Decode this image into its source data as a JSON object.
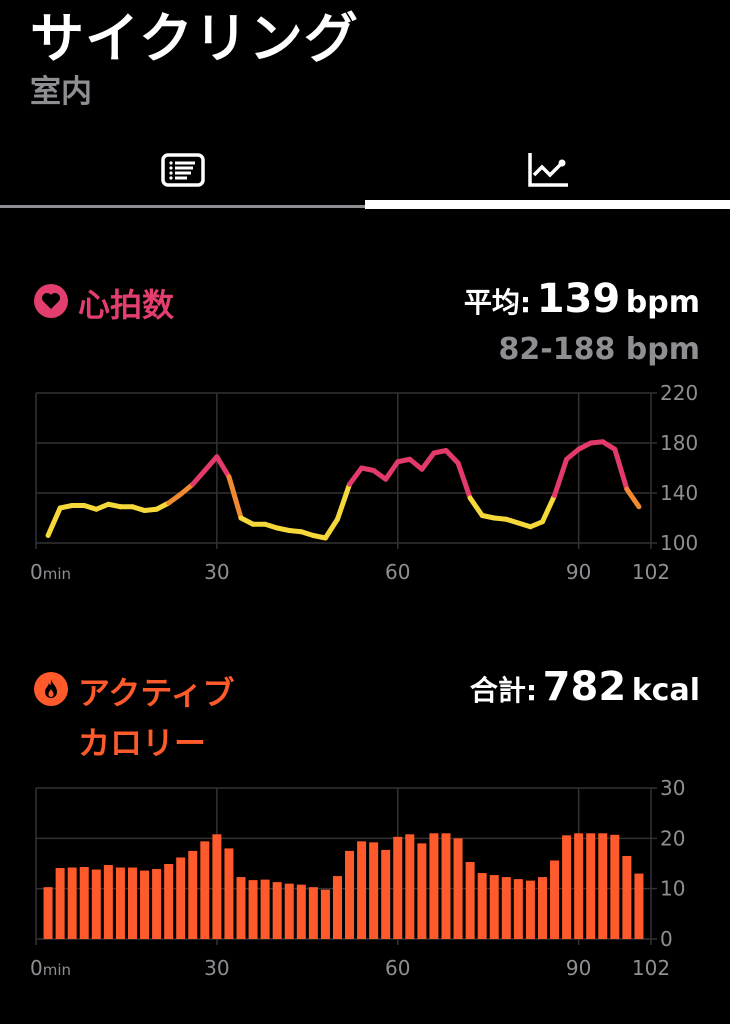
{
  "header": {
    "title": "サイクリング",
    "subtitle": "室内"
  },
  "tabs": [
    {
      "icon": "list-icon",
      "selected": false
    },
    {
      "icon": "chart-icon",
      "selected": true
    }
  ],
  "heart_rate": {
    "title": "心拍数",
    "icon": "heart-icon",
    "avg_label": "平均:",
    "avg_value": "139",
    "unit": "bpm",
    "range": "82-188 bpm",
    "color": "#e23e6e"
  },
  "calories": {
    "title_line1": "アクティブ",
    "title_line2": "カロリー",
    "icon": "flame-icon",
    "total_label": "合計:",
    "total_value": "782",
    "unit": "kcal",
    "color": "#ff5a2b"
  },
  "chart_data": [
    {
      "type": "line",
      "x_unit": "min",
      "x_ticks": [
        "0",
        "30",
        "60",
        "90",
        "102"
      ],
      "y_ticks": [
        "220",
        "180",
        "140",
        "100"
      ],
      "xlim": [
        0,
        102
      ],
      "ylim": [
        100,
        220
      ],
      "grid": true,
      "colors": {
        "low": "#f5d83a",
        "mid": "#f08a30",
        "high": "#e23a6a"
      },
      "x": [
        2,
        4,
        6,
        8,
        10,
        12,
        14,
        16,
        18,
        20,
        22,
        24,
        26,
        28,
        30,
        32,
        34,
        36,
        38,
        40,
        42,
        44,
        46,
        48,
        50,
        52,
        54,
        56,
        58,
        60,
        62,
        64,
        66,
        68,
        70,
        72,
        74,
        76,
        78,
        80,
        82,
        84,
        86,
        88,
        90,
        92,
        94,
        96,
        98,
        100
      ],
      "y": [
        106,
        128,
        130,
        130,
        127,
        131,
        129,
        129,
        126,
        127,
        132,
        139,
        147,
        158,
        169,
        153,
        120,
        115,
        115,
        112,
        110,
        109,
        106,
        104,
        119,
        147,
        160,
        158,
        151,
        165,
        167,
        159,
        172,
        174,
        164,
        136,
        122,
        120,
        119,
        116,
        113,
        117,
        138,
        167,
        175,
        180,
        181,
        175,
        143,
        129
      ]
    },
    {
      "type": "bar",
      "x_unit": "min",
      "x_ticks": [
        "0",
        "30",
        "60",
        "90",
        "102"
      ],
      "y_ticks": [
        "30",
        "20",
        "10",
        "0"
      ],
      "xlim": [
        0,
        102
      ],
      "ylim": [
        0,
        30
      ],
      "grid": true,
      "x": [
        2,
        4,
        6,
        8,
        10,
        12,
        14,
        16,
        18,
        20,
        22,
        24,
        26,
        28,
        30,
        32,
        34,
        36,
        38,
        40,
        42,
        44,
        46,
        48,
        50,
        52,
        54,
        56,
        58,
        60,
        62,
        64,
        66,
        68,
        70,
        72,
        74,
        76,
        78,
        80,
        82,
        84,
        86,
        88,
        90,
        92,
        94,
        96,
        98,
        100
      ],
      "values": [
        10.3,
        14.1,
        14.2,
        14.3,
        13.8,
        14.7,
        14.2,
        14.2,
        13.6,
        13.9,
        14.9,
        16.2,
        17.5,
        19.4,
        20.8,
        18,
        12.3,
        11.7,
        11.8,
        11.3,
        11,
        10.8,
        10.3,
        9.8,
        12.5,
        17.5,
        19.4,
        19.2,
        17.7,
        20.3,
        20.8,
        19,
        21,
        21,
        20,
        15.3,
        13.1,
        12.7,
        12.3,
        11.9,
        11.6,
        12.3,
        15.6,
        20.6,
        21,
        21,
        21,
        20.7,
        16.5,
        13
      ]
    }
  ]
}
